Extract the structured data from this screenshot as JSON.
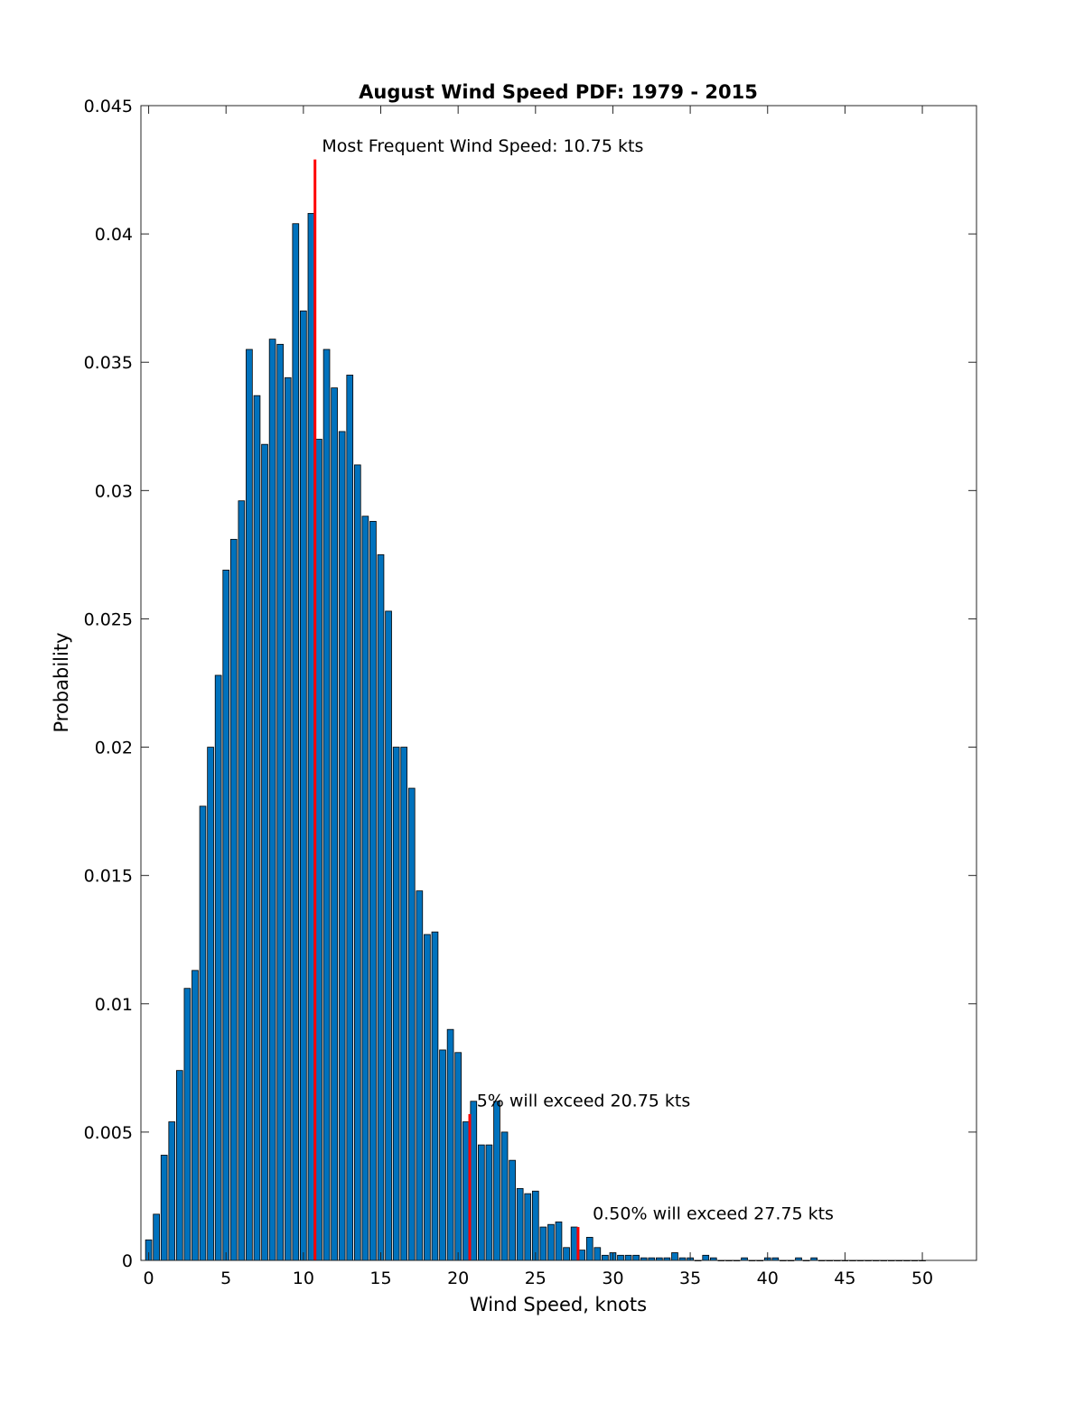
{
  "chart_data": {
    "type": "bar",
    "title": "August Wind Speed PDF: 1979 - 2015",
    "xlabel": "Wind Speed, knots",
    "ylabel": "Probability",
    "xlim": [
      -0.5,
      53.5
    ],
    "ylim": [
      0,
      0.045
    ],
    "bin_width": 0.5,
    "x_ticks": [
      0,
      5,
      10,
      15,
      20,
      25,
      30,
      35,
      40,
      45,
      50
    ],
    "y_ticks": [
      0,
      0.005,
      0.01,
      0.015,
      0.02,
      0.025,
      0.03,
      0.035,
      0.04,
      0.045
    ],
    "y_tick_labels": [
      "0",
      "0.005",
      "0.01",
      "0.015",
      "0.02",
      "0.025",
      "0.03",
      "0.035",
      "0.04",
      "0.045"
    ],
    "grid": false,
    "bar_color": "#0072BD",
    "marker_color": "#FF0000",
    "x": [
      0,
      0.5,
      1,
      1.5,
      2,
      2.5,
      3,
      3.5,
      4,
      4.5,
      5,
      5.5,
      6,
      6.5,
      7,
      7.5,
      8,
      8.5,
      9,
      9.5,
      10,
      10.5,
      11,
      11.5,
      12,
      12.5,
      13,
      13.5,
      14,
      14.5,
      15,
      15.5,
      16,
      16.5,
      17,
      17.5,
      18,
      18.5,
      19,
      19.5,
      20,
      20.5,
      21,
      21.5,
      22,
      22.5,
      23,
      23.5,
      24,
      24.5,
      25,
      25.5,
      26,
      26.5,
      27,
      27.5,
      28,
      28.5,
      29,
      29.5,
      30,
      30.5,
      31,
      31.5,
      32,
      32.5,
      33,
      33.5,
      34,
      34.5,
      35,
      35.5,
      36,
      36.5,
      37,
      37.5,
      38,
      38.5,
      39,
      39.5,
      40,
      40.5,
      41,
      41.5,
      42,
      42.5,
      43,
      43.5,
      44,
      44.5,
      45,
      45.5,
      46,
      46.5,
      47,
      47.5,
      48,
      48.5,
      49,
      49.5,
      50
    ],
    "values": [
      0.0008,
      0.0018,
      0.0041,
      0.0054,
      0.0074,
      0.0106,
      0.0113,
      0.0177,
      0.02,
      0.0228,
      0.0269,
      0.0281,
      0.0296,
      0.0355,
      0.0337,
      0.0318,
      0.0359,
      0.0357,
      0.0344,
      0.0404,
      0.037,
      0.0408,
      0.032,
      0.0355,
      0.034,
      0.0323,
      0.0345,
      0.031,
      0.029,
      0.0288,
      0.0275,
      0.0253,
      0.02,
      0.02,
      0.0184,
      0.0144,
      0.0127,
      0.0128,
      0.0082,
      0.009,
      0.0081,
      0.0054,
      0.0062,
      0.0045,
      0.0045,
      0.0062,
      0.005,
      0.0039,
      0.0028,
      0.0026,
      0.0027,
      0.0013,
      0.0014,
      0.0015,
      0.0005,
      0.0013,
      0.0004,
      0.0009,
      0.0005,
      0.0002,
      0.0003,
      0.0002,
      0.0002,
      0.0002,
      0.0001,
      0.0001,
      0.0001,
      0.0001,
      0.0003,
      0.0001,
      0.0001,
      0.0,
      0.0002,
      0.0001,
      0.0,
      0.0,
      0.0,
      0.0001,
      0.0,
      0.0,
      0.0001,
      0.0001,
      0.0,
      0.0,
      0.0001,
      0.0,
      0.0001,
      0.0,
      0.0,
      0.0,
      0.0,
      0.0,
      0.0,
      0.0,
      0.0,
      0.0,
      0.0,
      0.0,
      0.0,
      0.0,
      0.0
    ],
    "annotations": [
      {
        "text": "Most Frequent Wind Speed: 10.75 kts",
        "marker_x": 10.75,
        "marker_top": 0.0429,
        "text_x": 11.2,
        "text_y": 0.0432,
        "anchor": "start"
      },
      {
        "text": "5% will exceed 20.75 kts",
        "marker_x": 20.75,
        "marker_top": 0.0057,
        "text_x": 21.2,
        "text_y": 0.006,
        "anchor": "start"
      },
      {
        "text": "0.50% will exceed 27.75 kts",
        "marker_x": 27.75,
        "marker_top": 0.0013,
        "text_x": 28.7,
        "text_y": 0.0016,
        "anchor": "start"
      }
    ]
  }
}
